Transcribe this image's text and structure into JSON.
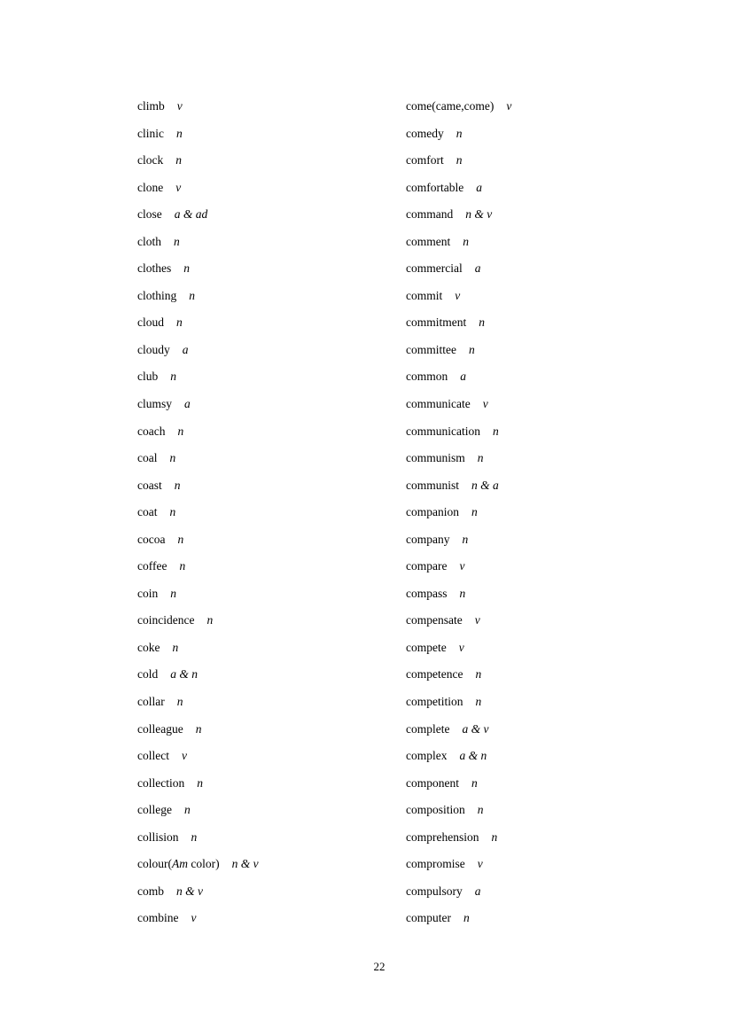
{
  "left_column": [
    {
      "word": "climb",
      "pos": "v"
    },
    {
      "word": "clinic",
      "pos": "n"
    },
    {
      "word": "clock",
      "pos": "n"
    },
    {
      "word": "clone",
      "pos": "v"
    },
    {
      "word": "close",
      "pos": "a & ad"
    },
    {
      "word": "cloth",
      "pos": "n"
    },
    {
      "word": "clothes",
      "pos": "n"
    },
    {
      "word": "clothing",
      "pos": "n"
    },
    {
      "word": "cloud",
      "pos": "n"
    },
    {
      "word": "cloudy",
      "pos": "a"
    },
    {
      "word": "club",
      "pos": "n"
    },
    {
      "word": "clumsy",
      "pos": "a"
    },
    {
      "word": "coach",
      "pos": "n"
    },
    {
      "word": "coal",
      "pos": "n"
    },
    {
      "word": "coast",
      "pos": "n"
    },
    {
      "word": "coat",
      "pos": "n"
    },
    {
      "word": "cocoa",
      "pos": "n"
    },
    {
      "word": "coffee",
      "pos": "n"
    },
    {
      "word": "coin",
      "pos": "n"
    },
    {
      "word": "coincidence",
      "pos": "n"
    },
    {
      "word": "coke",
      "pos": "n"
    },
    {
      "word": "cold",
      "pos": "a & n"
    },
    {
      "word": "collar",
      "pos": "n"
    },
    {
      "word": "colleague",
      "pos": "n"
    },
    {
      "word": "collect",
      "pos": "v"
    },
    {
      "word": "collection",
      "pos": "n"
    },
    {
      "word": "college",
      "pos": "n"
    },
    {
      "word": "collision",
      "pos": "n"
    },
    {
      "word": "colour(",
      "word_italic": "Am",
      "word_after": " color)",
      "pos": "n & v"
    },
    {
      "word": "comb",
      "pos": "n & v"
    },
    {
      "word": "combine",
      "pos": "v"
    }
  ],
  "right_column": [
    {
      "word": "come(came,come)",
      "pos": "v"
    },
    {
      "word": "comedy",
      "pos": "n"
    },
    {
      "word": "comfort",
      "pos": "n"
    },
    {
      "word": "comfortable",
      "pos": "a"
    },
    {
      "word": "command",
      "pos": "n & v"
    },
    {
      "word": "comment",
      "pos": "n"
    },
    {
      "word": "commercial",
      "pos": "a"
    },
    {
      "word": "commit",
      "pos": "v"
    },
    {
      "word": "commitment",
      "pos": "n"
    },
    {
      "word": "committee",
      "pos": "n"
    },
    {
      "word": "common",
      "pos": "a"
    },
    {
      "word": "communicate",
      "pos": "v"
    },
    {
      "word": "communication",
      "pos": "n"
    },
    {
      "word": "communism",
      "pos": "n"
    },
    {
      "word": "communist",
      "pos": "n & a"
    },
    {
      "word": "companion",
      "pos": "n"
    },
    {
      "word": "company",
      "pos": "n"
    },
    {
      "word": "compare",
      "pos": "v"
    },
    {
      "word": "compass",
      "pos": "n"
    },
    {
      "word": "compensate",
      "pos": "v"
    },
    {
      "word": "compete",
      "pos": "v"
    },
    {
      "word": "competence",
      "pos": "n"
    },
    {
      "word": "competition",
      "pos": "n"
    },
    {
      "word": "complete",
      "pos": "a & v"
    },
    {
      "word": "complex",
      "pos": "a & n"
    },
    {
      "word": "component",
      "pos": "n"
    },
    {
      "word": "composition",
      "pos": "n"
    },
    {
      "word": "comprehension",
      "pos": "n"
    },
    {
      "word": "compromise",
      "pos": "v"
    },
    {
      "word": "compulsory",
      "pos": "a"
    },
    {
      "word": "computer",
      "pos": "n"
    }
  ],
  "page_number": "22"
}
